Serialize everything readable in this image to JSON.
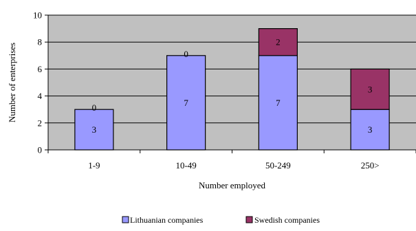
{
  "chart_data": {
    "type": "bar",
    "stacked": true,
    "title": "",
    "xlabel": "Number employed",
    "ylabel": "Number of enterprises",
    "categories": [
      "1-9",
      "10-49",
      "50-249",
      "250>"
    ],
    "ylim": [
      0,
      10
    ],
    "yticks": [
      0,
      2,
      4,
      6,
      8,
      10
    ],
    "grid": true,
    "legend_position": "bottom-right",
    "series": [
      {
        "name": "Lithuanian companies",
        "values": [
          3,
          7,
          7,
          3
        ],
        "color": "#9999ff"
      },
      {
        "name": "Swedish companies",
        "values": [
          0,
          0,
          2,
          3
        ],
        "color": "#993366"
      }
    ],
    "plot_background": "#c0c0c0",
    "gridline_color": "#000000"
  }
}
